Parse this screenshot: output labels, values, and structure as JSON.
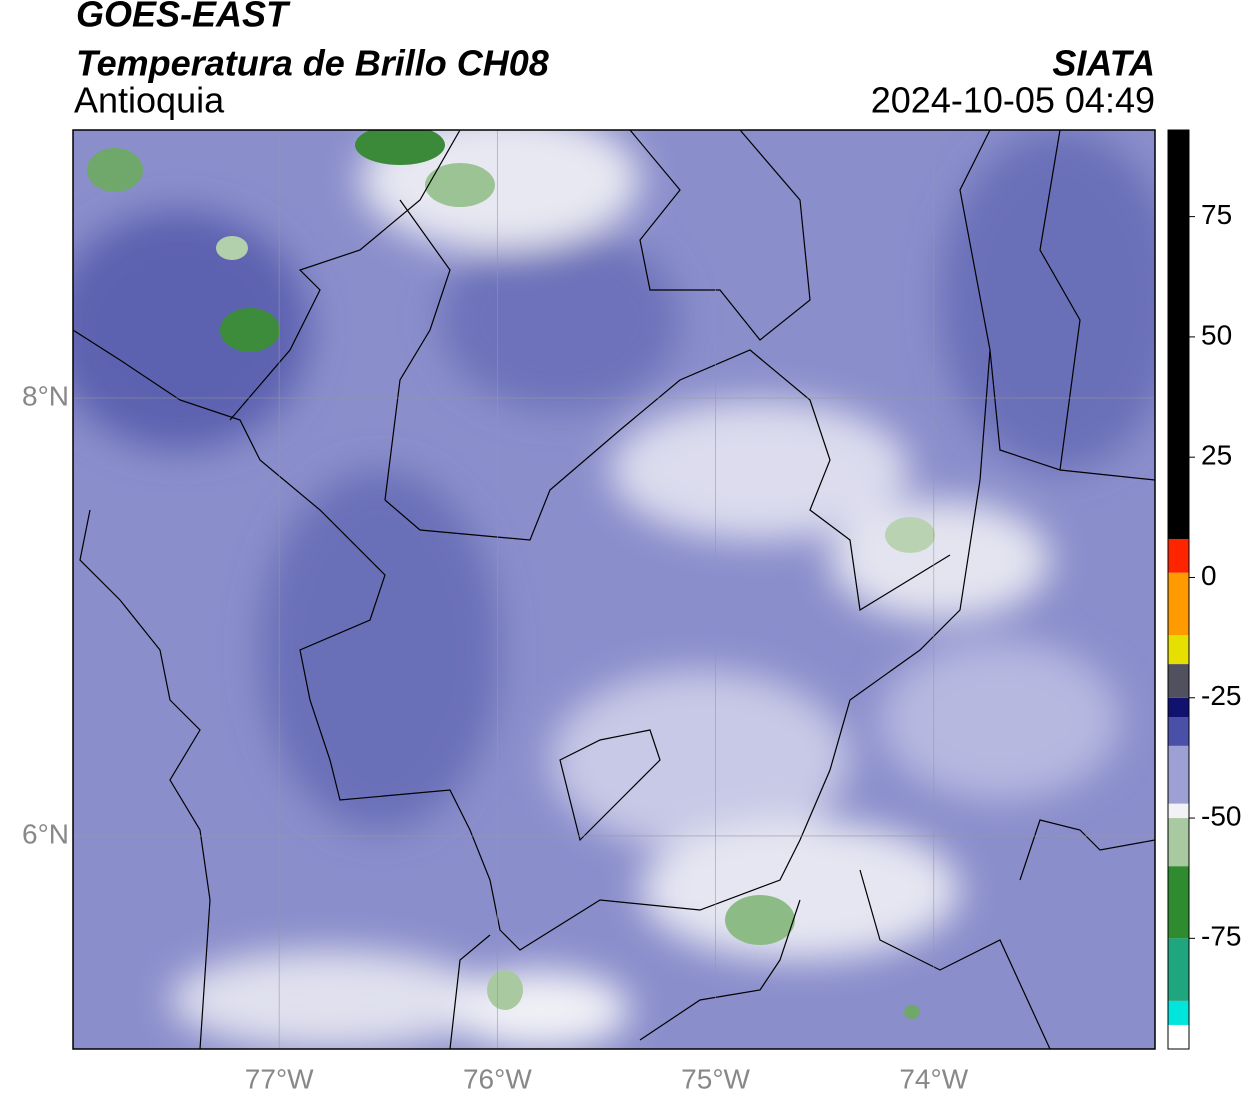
{
  "header": {
    "title": "GOES-EAST",
    "subtitle": "Temperatura de Brillo CH08",
    "region": "Antioquia",
    "source": "SIATA",
    "timestamp": "2024-10-05 04:49"
  },
  "map": {
    "lonlim": [
      -77.945,
      -72.986
    ],
    "latlim": [
      5.027,
      9.224
    ],
    "lon_ticks": [
      {
        "value": -77,
        "label": "77°W"
      },
      {
        "value": -76,
        "label": "76°W"
      },
      {
        "value": -75,
        "label": "75°W"
      },
      {
        "value": -74,
        "label": "74°W"
      }
    ],
    "lat_ticks": [
      {
        "value": 8,
        "label": "8°N"
      },
      {
        "value": 6,
        "label": "6°N"
      }
    ]
  },
  "colorbar": {
    "lim": [
      -98,
      93
    ],
    "ticks": [
      75,
      50,
      25,
      0,
      -25,
      -50,
      -75
    ],
    "segments": [
      {
        "from": -98,
        "to": -93,
        "color": "#ffffff"
      },
      {
        "from": -93,
        "to": -88,
        "color": "#00e5dc"
      },
      {
        "from": -88,
        "to": -75,
        "color": "#1fa67e"
      },
      {
        "from": -75,
        "to": -60,
        "color": "#2e8b2e"
      },
      {
        "from": -60,
        "to": -50,
        "color": "#a9c9a1"
      },
      {
        "from": -50,
        "to": -47,
        "color": "#f2f2f6"
      },
      {
        "from": -47,
        "to": -35,
        "color": "#9ca0d2"
      },
      {
        "from": -35,
        "to": -29,
        "color": "#4a50a8"
      },
      {
        "from": -29,
        "to": -25,
        "color": "#111170"
      },
      {
        "from": -25,
        "to": -18,
        "color": "#50505e"
      },
      {
        "from": -18,
        "to": -12,
        "color": "#e6e000"
      },
      {
        "from": -12,
        "to": 1,
        "color": "#ff9a00"
      },
      {
        "from": 1,
        "to": 8,
        "color": "#ff2400"
      },
      {
        "from": 8,
        "to": 93,
        "color": "#000000"
      }
    ]
  }
}
